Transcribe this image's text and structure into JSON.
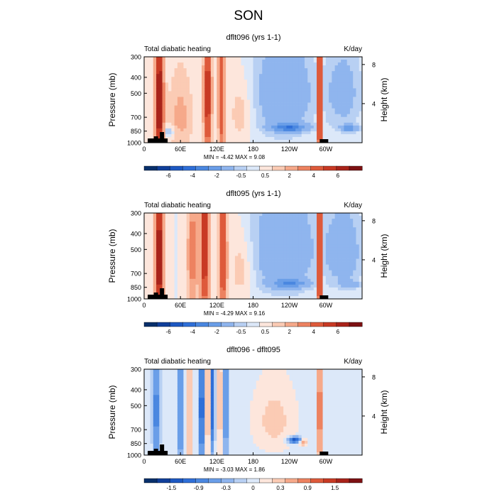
{
  "figure_title": "SON",
  "chart_data": [
    {
      "type": "heatmap",
      "title": "dflt096 (yrs 1-1)",
      "subtitle_left": "Total diabatic heating",
      "subtitle_right": "K/day",
      "ylabel": "Pressure (mb)",
      "ylabel_right": "Height (km)",
      "ylim": [
        1000,
        300
      ],
      "y_ticks": [
        "300",
        "400",
        "500",
        "700",
        "850",
        "1000"
      ],
      "y_tick_values": [
        300,
        400,
        500,
        700,
        850,
        1000
      ],
      "right_ticks": [
        "8",
        "4"
      ],
      "right_tick_km": [
        8,
        4
      ],
      "x_ticks": [
        "0",
        "60E",
        "120E",
        "180",
        "120W",
        "60W"
      ],
      "x_tick_values": [
        0,
        60,
        120,
        180,
        240,
        300
      ],
      "xlim": [
        0,
        360
      ],
      "stats_text": "MIN =    -4.42   MAX =     9.08",
      "min": -4.42,
      "max": 9.08,
      "colorbar_labels": [
        "-6",
        "-4",
        "-2",
        "-0.5",
        "0.5",
        "2",
        "4",
        "6"
      ],
      "levels": [
        -7,
        -6,
        -5,
        -4,
        -3,
        -2,
        -1,
        -0.5,
        0,
        0.5,
        1,
        2,
        3,
        4,
        5,
        6,
        7
      ],
      "features": [
        {
          "lon": 25,
          "p": 600,
          "amp": 6,
          "wx": 7,
          "wy": 900
        },
        {
          "lon": 105,
          "p": 520,
          "amp": 5,
          "wx": 6,
          "wy": 700
        },
        {
          "lon": 128,
          "p": 520,
          "amp": 4,
          "wx": 5,
          "wy": 700
        },
        {
          "lon": 290,
          "p": 520,
          "amp": 6,
          "wx": 4,
          "wy": 900
        },
        {
          "lon": 60,
          "p": 700,
          "amp": 1.2,
          "wx": 22,
          "wy": 400
        },
        {
          "lon": 160,
          "p": 650,
          "amp": 1.0,
          "wx": 20,
          "wy": 300
        },
        {
          "lon": 230,
          "p": 500,
          "amp": -1.8,
          "wx": 55,
          "wy": 400
        },
        {
          "lon": 330,
          "p": 500,
          "amp": -1.4,
          "wx": 30,
          "wy": 300
        },
        {
          "lon": 240,
          "p": 810,
          "amp": -3.2,
          "wx": 30,
          "wy": 45
        },
        {
          "lon": 340,
          "p": 820,
          "amp": -2.5,
          "wx": 15,
          "wy": 40
        },
        {
          "lon": 40,
          "p": 860,
          "amp": -1.5,
          "wx": 10,
          "wy": 60
        }
      ]
    },
    {
      "type": "heatmap",
      "title": "dflt095 (yrs 1-1)",
      "subtitle_left": "Total diabatic heating",
      "subtitle_right": "K/day",
      "ylabel": "Pressure (mb)",
      "ylabel_right": "Height (km)",
      "ylim": [
        1000,
        300
      ],
      "y_ticks": [
        "300",
        "400",
        "500",
        "700",
        "850",
        "1000"
      ],
      "y_tick_values": [
        300,
        400,
        500,
        700,
        850,
        1000
      ],
      "right_ticks": [
        "8",
        "4"
      ],
      "right_tick_km": [
        8,
        4
      ],
      "x_ticks": [
        "0",
        "60E",
        "120E",
        "180",
        "120W",
        "60W"
      ],
      "x_tick_values": [
        0,
        60,
        120,
        180,
        240,
        300
      ],
      "xlim": [
        0,
        360
      ],
      "stats_text": "MIN =    -4.29   MAX =     9.16",
      "min": -4.29,
      "max": 9.16,
      "colorbar_labels": [
        "-6",
        "-4",
        "-2",
        "-0.5",
        "0.5",
        "2",
        "4",
        "6"
      ],
      "levels": [
        -7,
        -6,
        -5,
        -4,
        -3,
        -2,
        -1,
        -0.5,
        0,
        0.5,
        1,
        2,
        3,
        4,
        5,
        6,
        7
      ],
      "features": [
        {
          "lon": 25,
          "p": 600,
          "amp": 6,
          "wx": 7,
          "wy": 900
        },
        {
          "lon": 80,
          "p": 550,
          "amp": 2.5,
          "wx": 8,
          "wy": 600
        },
        {
          "lon": 100,
          "p": 520,
          "amp": 5,
          "wx": 7,
          "wy": 700
        },
        {
          "lon": 130,
          "p": 520,
          "amp": 4.5,
          "wx": 6,
          "wy": 700
        },
        {
          "lon": 290,
          "p": 520,
          "amp": 6,
          "wx": 4,
          "wy": 900
        },
        {
          "lon": 160,
          "p": 650,
          "amp": 1.0,
          "wx": 20,
          "wy": 300
        },
        {
          "lon": 230,
          "p": 500,
          "amp": -2.0,
          "wx": 55,
          "wy": 400
        },
        {
          "lon": 330,
          "p": 520,
          "amp": -1.8,
          "wx": 30,
          "wy": 300
        },
        {
          "lon": 240,
          "p": 810,
          "amp": -2.2,
          "wx": 30,
          "wy": 50
        },
        {
          "lon": 340,
          "p": 820,
          "amp": -1.5,
          "wx": 15,
          "wy": 40
        }
      ]
    },
    {
      "type": "heatmap",
      "title": "dflt096 - dflt095",
      "subtitle_left": "Total diabatic heating",
      "subtitle_right": "K/day",
      "ylabel": "Pressure (mb)",
      "ylabel_right": "Height (km)",
      "ylim": [
        1000,
        300
      ],
      "y_ticks": [
        "300",
        "400",
        "500",
        "700",
        "850",
        "1000"
      ],
      "y_tick_values": [
        300,
        400,
        500,
        700,
        850,
        1000
      ],
      "right_ticks": [
        "8",
        "4"
      ],
      "right_tick_km": [
        8,
        4
      ],
      "x_ticks": [
        "0",
        "60E",
        "120E",
        "180",
        "120W",
        "60W"
      ],
      "x_tick_values": [
        0,
        60,
        120,
        180,
        240,
        300
      ],
      "xlim": [
        0,
        360
      ],
      "stats_text": "MIN =    -3.03   MAX =     1.86",
      "min": -3.03,
      "max": 1.86,
      "colorbar_labels": [
        "-1.5",
        "-0.9",
        "-0.3",
        "0",
        "0.3",
        "0.9",
        "1.5"
      ],
      "levels": [
        -2.1,
        -1.8,
        -1.5,
        -1.2,
        -0.9,
        -0.6,
        -0.3,
        -0.1,
        0.1,
        0.3,
        0.6,
        0.9,
        1.2,
        1.5,
        1.8,
        2.1
      ],
      "features": [
        {
          "lon": 20,
          "p": 550,
          "amp": -1.2,
          "wx": 5,
          "wy": 600
        },
        {
          "lon": 60,
          "p": 550,
          "amp": -1.3,
          "wx": 4,
          "wy": 600
        },
        {
          "lon": 95,
          "p": 520,
          "amp": -1.8,
          "wx": 4,
          "wy": 600
        },
        {
          "lon": 113,
          "p": 480,
          "amp": -1.5,
          "wx": 3,
          "wy": 500
        },
        {
          "lon": 135,
          "p": 480,
          "amp": -1.7,
          "wx": 3,
          "wy": 500
        },
        {
          "lon": 75,
          "p": 600,
          "amp": 0.8,
          "wx": 4,
          "wy": 500
        },
        {
          "lon": 105,
          "p": 500,
          "amp": 0.9,
          "wx": 3,
          "wy": 500
        },
        {
          "lon": 125,
          "p": 500,
          "amp": 0.7,
          "wx": 3,
          "wy": 500
        },
        {
          "lon": 215,
          "p": 620,
          "amp": 0.4,
          "wx": 35,
          "wy": 300
        },
        {
          "lon": 290,
          "p": 550,
          "amp": 1.4,
          "wx": 4,
          "wy": 600
        },
        {
          "lon": 250,
          "p": 810,
          "amp": -1.8,
          "wx": 12,
          "wy": 35
        },
        {
          "lon": 262,
          "p": 830,
          "amp": 1.2,
          "wx": 6,
          "wy": 40
        }
      ]
    }
  ]
}
